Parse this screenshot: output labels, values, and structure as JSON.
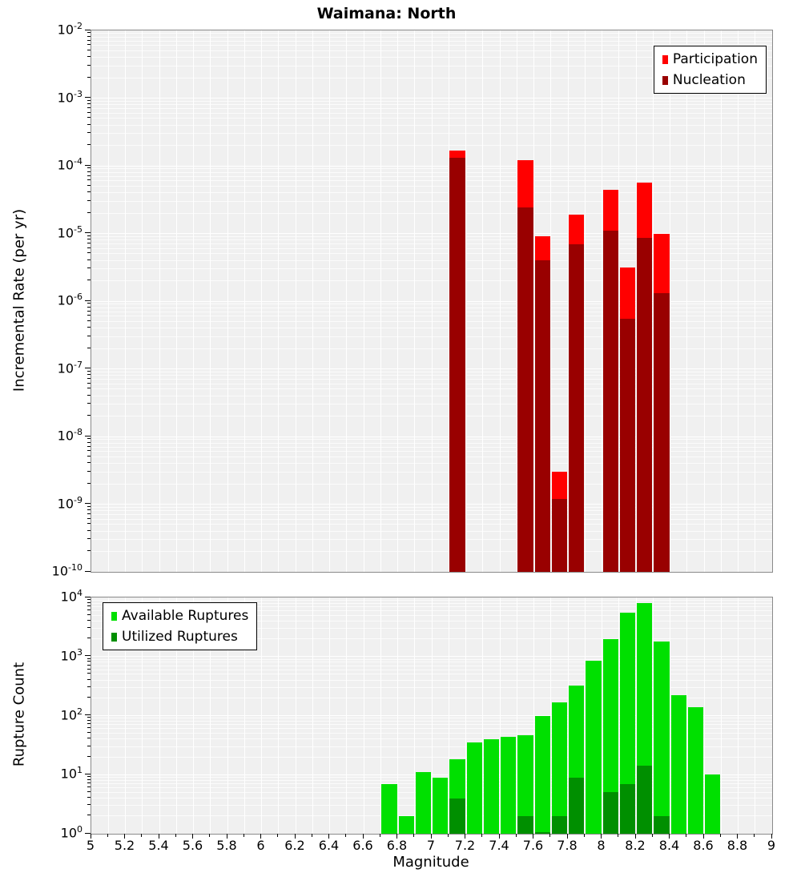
{
  "chart_data": [
    {
      "type": "bar",
      "title": "Waimana: North",
      "ylabel": "Incremental Rate (per yr)",
      "yscale": "log",
      "xscale": "linear",
      "xlim": [
        5,
        9
      ],
      "ylim": [
        1e-10,
        0.01
      ],
      "y_tick_exponents": [
        -2,
        -3,
        -4,
        -5,
        -6,
        -7,
        -8,
        -9,
        -10
      ],
      "bin_width": 0.1,
      "grid": true,
      "background": "#f0f0f0",
      "grid_color": "#ffffff",
      "legend_position": "top-right",
      "legend": [
        {
          "label": "Participation",
          "color": "#ff0000"
        },
        {
          "label": "Nucleation",
          "color": "#990000"
        }
      ],
      "series": [
        {
          "name": "Participation",
          "color": "#ff0000",
          "points": [
            [
              7.15,
              0.00017
            ],
            [
              7.55,
              0.00012
            ],
            [
              7.65,
              9e-06
            ],
            [
              7.75,
              3e-09
            ],
            [
              7.85,
              1.9e-05
            ],
            [
              8.05,
              4.4e-05
            ],
            [
              8.15,
              3.1e-06
            ],
            [
              8.25,
              5.7e-05
            ],
            [
              8.35,
              1e-05
            ]
          ]
        },
        {
          "name": "Nucleation",
          "color": "#990000",
          "points": [
            [
              7.15,
              0.00013
            ],
            [
              7.55,
              2.4e-05
            ],
            [
              7.65,
              4e-06
            ],
            [
              7.75,
              1.2e-09
            ],
            [
              7.85,
              7e-06
            ],
            [
              8.05,
              1.1e-05
            ],
            [
              8.15,
              5.5e-07
            ],
            [
              8.25,
              8.5e-06
            ],
            [
              8.35,
              1.3e-06
            ]
          ]
        }
      ]
    },
    {
      "type": "bar",
      "ylabel": "Rupture Count",
      "xlabel": "Magnitude",
      "yscale": "log",
      "xscale": "linear",
      "xlim": [
        5,
        9
      ],
      "ylim": [
        1,
        10000
      ],
      "y_tick_exponents": [
        4,
        3,
        2,
        1,
        0
      ],
      "x_tick_labels": [
        "5",
        "5.2",
        "5.4",
        "5.6",
        "5.8",
        "6",
        "6.2",
        "6.4",
        "6.6",
        "6.8",
        "7",
        "7.2",
        "7.4",
        "7.6",
        "7.8",
        "8",
        "8.2",
        "8.4",
        "8.6",
        "8.8",
        "9"
      ],
      "bin_width": 0.1,
      "grid": true,
      "background": "#f0f0f0",
      "grid_color": "#ffffff",
      "legend_position": "top-left",
      "legend": [
        {
          "label": "Available Ruptures",
          "color": "#00e000"
        },
        {
          "label": "Utilized Ruptures",
          "color": "#008f00"
        }
      ],
      "series": [
        {
          "name": "Available Ruptures",
          "color": "#00e000",
          "points": [
            [
              6.75,
              7
            ],
            [
              6.85,
              2
            ],
            [
              6.95,
              11
            ],
            [
              7.05,
              9
            ],
            [
              7.15,
              18
            ],
            [
              7.25,
              35
            ],
            [
              7.35,
              40
            ],
            [
              7.45,
              44
            ],
            [
              7.55,
              47
            ],
            [
              7.65,
              100
            ],
            [
              7.75,
              170
            ],
            [
              7.85,
              320
            ],
            [
              7.95,
              850
            ],
            [
              8.05,
              2000
            ],
            [
              8.15,
              5500
            ],
            [
              8.25,
              8000
            ],
            [
              8.35,
              1800
            ],
            [
              8.45,
              220
            ],
            [
              8.55,
              140
            ],
            [
              8.65,
              10
            ]
          ]
        },
        {
          "name": "Utilized Ruptures",
          "color": "#008f00",
          "points": [
            [
              7.15,
              4
            ],
            [
              7.55,
              2
            ],
            [
              7.65,
              1
            ],
            [
              7.75,
              2
            ],
            [
              7.85,
              9
            ],
            [
              8.05,
              5
            ],
            [
              8.15,
              7
            ],
            [
              8.25,
              14
            ],
            [
              8.35,
              2
            ]
          ]
        }
      ]
    }
  ]
}
